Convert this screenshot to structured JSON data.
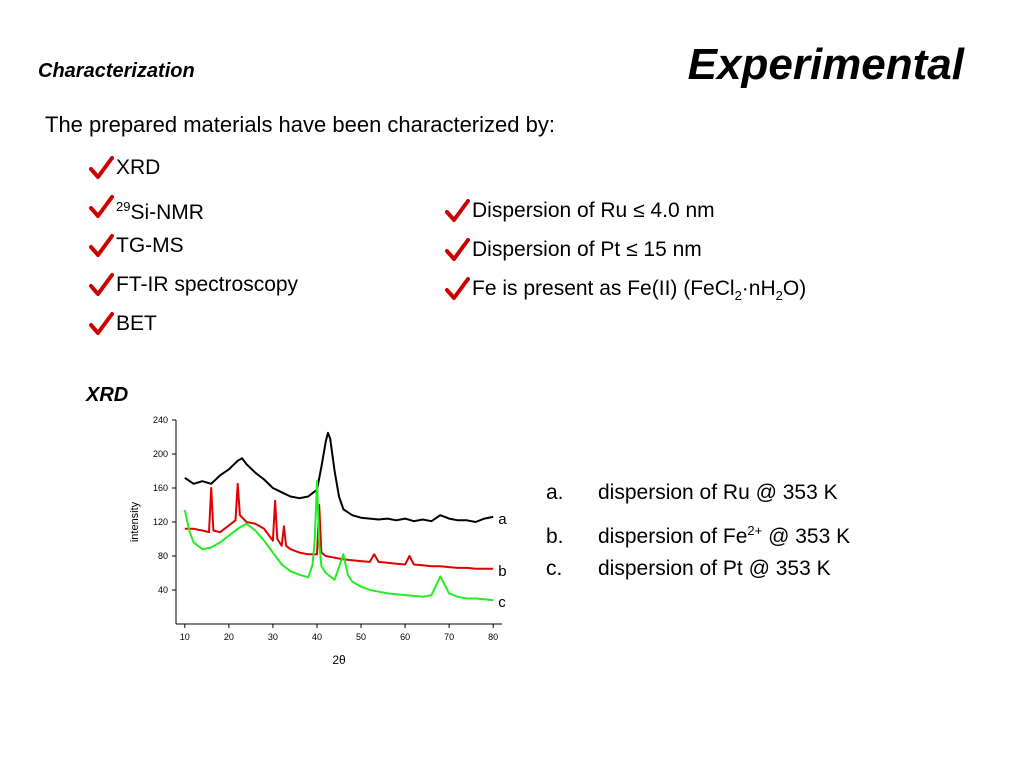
{
  "slide": {
    "title": "Experimental",
    "section": "Characterization",
    "intro": "The prepared materials have been characterized by:",
    "techniques": [
      {
        "pre": "",
        "sup": "",
        "text": "XRD"
      },
      {
        "pre": "",
        "sup": "29",
        "text": "Si-NMR"
      },
      {
        "pre": "",
        "sup": "",
        "text": "TG-MS"
      },
      {
        "pre": "",
        "sup": "",
        "text": "FT-IR spectroscopy"
      },
      {
        "pre": "",
        "sup": "",
        "text": "BET"
      }
    ],
    "findings": {
      "ru": "Dispersion of Ru ≤ 4.0 nm",
      "pt": "Dispersion of Pt ≤ 15 nm",
      "fe_a": "Fe is present as Fe(II) (FeCl",
      "fe_sub1": "2",
      "fe_b": "·nH",
      "fe_sub2": "2",
      "fe_c": "O)"
    },
    "xrd_label": "XRD",
    "legend": [
      {
        "marker": "a.",
        "text": "dispersion of Ru @ 353 K",
        "sup": "",
        "after": ""
      },
      {
        "marker": "b.",
        "text": "dispersion of Fe",
        "sup": "2+",
        "after": " @ 353 K"
      },
      {
        "marker": "c.",
        "text": "dispersion of Pt @ 353 K",
        "sup": "",
        "after": ""
      }
    ],
    "colors": {
      "check": "#cc0000",
      "series_a": "#000000",
      "series_b": "#e00000",
      "series_c": "#22ee22"
    },
    "icons": {
      "bullet": "checkmark-icon"
    }
  },
  "chart_data": {
    "type": "line",
    "xlabel": "2θ",
    "ylabel": "intensity",
    "xlim": [
      8,
      82
    ],
    "ylim": [
      0,
      240
    ],
    "xticks": [
      10,
      20,
      30,
      40,
      50,
      60,
      70,
      80
    ],
    "yticks": [
      40,
      80,
      120,
      160,
      200,
      240
    ],
    "series": [
      {
        "name": "a",
        "color": "#000000",
        "x": [
          10,
          12,
          14,
          16,
          18,
          20,
          22,
          23,
          24,
          26,
          28,
          30,
          32,
          34,
          36,
          38,
          40,
          41,
          42,
          42.5,
          43,
          44,
          45,
          46,
          48,
          50,
          52,
          54,
          56,
          58,
          60,
          62,
          64,
          66,
          68,
          70,
          72,
          74,
          76,
          78,
          80
        ],
        "y": [
          172,
          165,
          168,
          165,
          175,
          182,
          192,
          195,
          188,
          178,
          170,
          160,
          155,
          150,
          148,
          150,
          158,
          185,
          215,
          225,
          218,
          180,
          150,
          135,
          128,
          125,
          124,
          123,
          124,
          122,
          124,
          121,
          123,
          121,
          128,
          124,
          122,
          122,
          120,
          124,
          126
        ]
      },
      {
        "name": "b",
        "color": "#e00000",
        "x": [
          10,
          12,
          14,
          15.5,
          16,
          16.5,
          18,
          20,
          21.5,
          22,
          22.5,
          24,
          26,
          28,
          30,
          30.5,
          31,
          32,
          32.5,
          33,
          34,
          36,
          38,
          40,
          40.5,
          41,
          42,
          44,
          46,
          48,
          50,
          52,
          53,
          54,
          56,
          58,
          60,
          61,
          62,
          64,
          66,
          68,
          70,
          72,
          74,
          76,
          78,
          80
        ],
        "y": [
          112,
          112,
          110,
          108,
          160,
          110,
          108,
          116,
          122,
          165,
          128,
          120,
          118,
          112,
          98,
          145,
          100,
          92,
          115,
          92,
          88,
          84,
          82,
          82,
          140,
          84,
          80,
          78,
          76,
          75,
          74,
          73,
          82,
          73,
          72,
          71,
          70,
          80,
          70,
          69,
          68,
          68,
          67,
          66,
          66,
          65,
          65,
          65
        ],
        "peaks_labeled": [
          16,
          22,
          30.5,
          40.5
        ]
      },
      {
        "name": "c",
        "color": "#22ee22",
        "x": [
          10,
          11,
          12,
          14,
          16,
          18,
          20,
          22,
          24,
          26,
          28,
          30,
          32,
          34,
          36,
          38,
          39,
          39.5,
          40,
          40.5,
          41,
          42,
          44,
          46,
          47,
          48,
          50,
          52,
          54,
          56,
          58,
          60,
          62,
          64,
          66,
          68,
          70,
          72,
          74,
          76,
          78,
          80
        ],
        "y": [
          134,
          110,
          96,
          88,
          90,
          96,
          104,
          112,
          118,
          110,
          98,
          84,
          70,
          62,
          58,
          55,
          70,
          100,
          168,
          95,
          68,
          60,
          52,
          82,
          58,
          50,
          44,
          40,
          38,
          36,
          35,
          34,
          33,
          32,
          34,
          56,
          36,
          32,
          30,
          30,
          29,
          28
        ]
      }
    ],
    "annotations": [
      "a",
      "b",
      "c"
    ]
  }
}
